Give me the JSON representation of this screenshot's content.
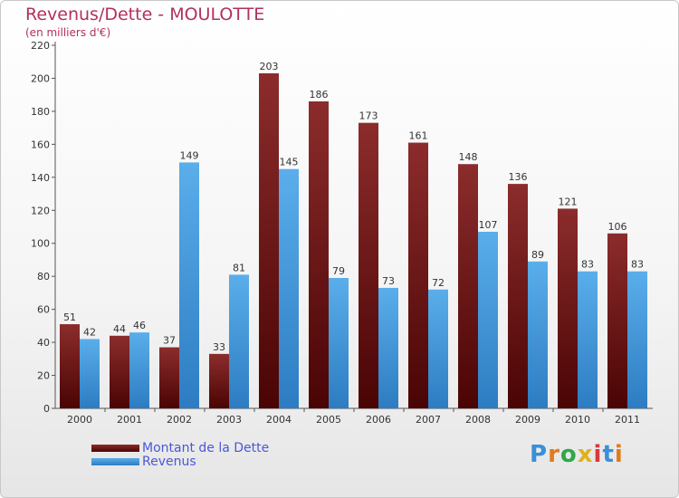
{
  "title": "Revenus/Dette - MOULOTTE",
  "subtitle": "(en milliers d'€)",
  "logo": {
    "text": "Proxiti",
    "colors": [
      "#3a8fd9",
      "#e07b1c",
      "#2ea84a",
      "#e0b020",
      "#d93a3a",
      "#3a8fd9",
      "#e07b1c"
    ]
  },
  "colors": {
    "dette_top": "#8c2c2c",
    "dette_bottom": "#4a0404",
    "revenus_top": "#5aaeea",
    "revenus_bottom": "#2d7cc2",
    "title": "#b3305a",
    "legend_text": "#4a58d8"
  },
  "chart_data": {
    "type": "bar",
    "title": "Revenus/Dette - MOULOTTE",
    "subtitle": "(en milliers d'€)",
    "categories": [
      "2000",
      "2001",
      "2002",
      "2003",
      "2004",
      "2005",
      "2006",
      "2007",
      "2008",
      "2009",
      "2010",
      "2011"
    ],
    "series": [
      {
        "name": "Montant de la Dette",
        "values": [
          51,
          44,
          37,
          33,
          203,
          186,
          173,
          161,
          148,
          136,
          121,
          106
        ]
      },
      {
        "name": "Revenus",
        "values": [
          42,
          46,
          149,
          81,
          145,
          79,
          73,
          72,
          107,
          89,
          83,
          83
        ]
      }
    ],
    "ylim": [
      0,
      220
    ],
    "yticks": [
      0,
      20,
      40,
      60,
      80,
      100,
      120,
      140,
      160,
      180,
      200,
      220
    ],
    "grid": false,
    "data_labels": true,
    "legend_position": "bottom-left"
  }
}
